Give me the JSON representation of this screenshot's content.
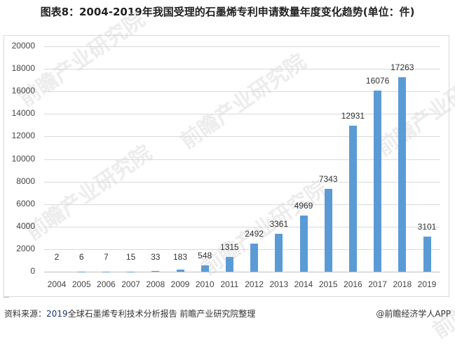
{
  "title": "图表8：2004-2019年我国受理的石墨烯专利申请数量年度变化趋势(单位：件)",
  "footer": {
    "source_prefix": "资料来源：",
    "source_year": "2019",
    "source_rest": "全球石墨烯专利技术分析报告 前瞻产业研究院整理",
    "credit": "@前瞻经济学人APP"
  },
  "watermark": "前瞻产业研究院",
  "colors": {
    "bar": "#5b9bd5",
    "grid": "#d9d9d9"
  },
  "chart_data": {
    "type": "bar",
    "title": "图表8：2004-2019年我国受理的石墨烯专利申请数量年度变化趋势(单位：件)",
    "xlabel": "",
    "ylabel": "",
    "ylim": [
      0,
      20000
    ],
    "yticks": [
      0,
      2000,
      4000,
      6000,
      8000,
      10000,
      12000,
      14000,
      16000,
      18000,
      20000
    ],
    "grid": true,
    "legend": "none",
    "categories": [
      "2004",
      "2005",
      "2006",
      "2007",
      "2008",
      "2009",
      "2010",
      "2011",
      "2012",
      "2013",
      "2014",
      "2015",
      "2016",
      "2017",
      "2018",
      "2019"
    ],
    "values": [
      2,
      6,
      7,
      15,
      33,
      183,
      548,
      1315,
      2492,
      3361,
      4969,
      7343,
      12931,
      16076,
      17263,
      3101
    ]
  }
}
